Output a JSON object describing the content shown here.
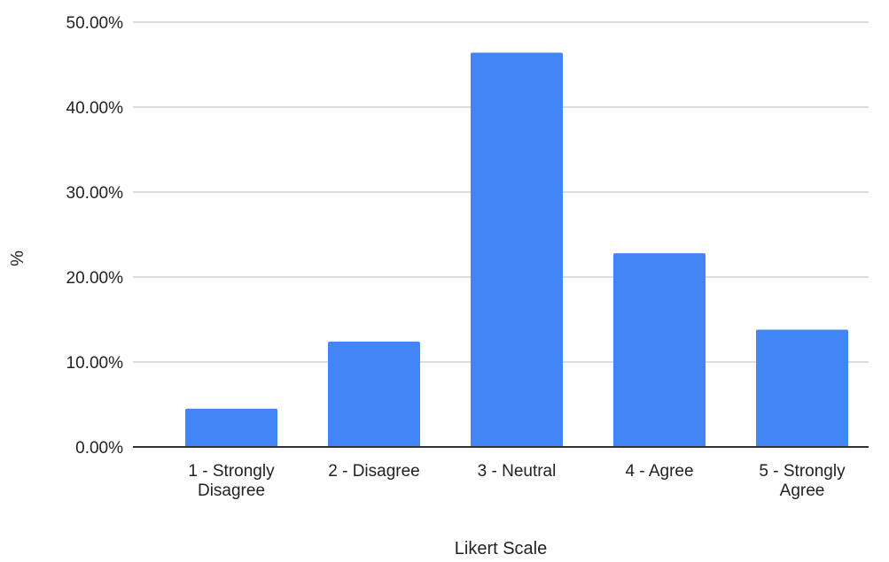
{
  "chart_data": {
    "type": "bar",
    "title": "",
    "xlabel": "Likert Scale",
    "ylabel": "%",
    "categories": [
      "1 - Strongly Disagree",
      "2 - Disagree",
      "3 - Neutral",
      "4 - Agree",
      "5 - Strongly Agree"
    ],
    "category_lines": [
      [
        "1 - Strongly",
        "Disagree"
      ],
      [
        "2 - Disagree"
      ],
      [
        "3 - Neutral"
      ],
      [
        "4 - Agree"
      ],
      [
        "5 - Strongly",
        "Agree"
      ]
    ],
    "values": [
      4.5,
      12.4,
      46.4,
      22.8,
      13.8
    ],
    "ylim": [
      0,
      50
    ],
    "yticks": [
      0,
      10,
      20,
      30,
      40,
      50
    ],
    "ytick_labels": [
      "0.00%",
      "10.00%",
      "20.00%",
      "30.00%",
      "40.00%",
      "50.00%"
    ],
    "grid": true,
    "legend": "none",
    "colors": {
      "bar": "#4285f4",
      "grid": "#d0d0d0",
      "axis": "#333333",
      "text": "#222222"
    }
  }
}
